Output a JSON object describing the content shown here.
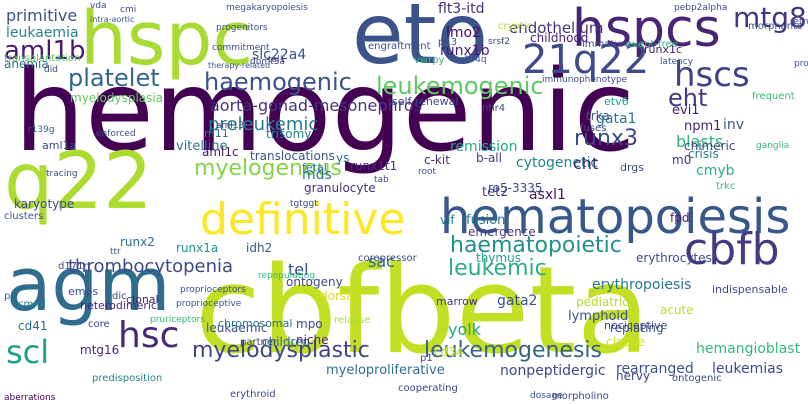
{
  "words": [
    {
      "text": "hemogenic",
      "color": "#440154"
    },
    {
      "text": "cbfbeta",
      "color": "#c2df23"
    },
    {
      "text": "eto",
      "color": "#3b528b"
    },
    {
      "text": "hspc",
      "color": "#a8db34"
    },
    {
      "text": "q22",
      "color": "#addc30"
    },
    {
      "text": "agm",
      "color": "#2f6c8e"
    },
    {
      "text": "hspcs",
      "color": "#482475"
    },
    {
      "text": "21q22",
      "color": "#3e4a89"
    },
    {
      "text": "hematopoiesis",
      "color": "#38588c"
    },
    {
      "text": "cbfb",
      "color": "#443983"
    },
    {
      "text": "definitive",
      "color": "#fde725"
    },
    {
      "text": "hscs",
      "color": "#424086"
    },
    {
      "text": "mtg8",
      "color": "#463480"
    },
    {
      "text": "aml1b",
      "color": "#481b6d"
    },
    {
      "text": "platelet",
      "color": "#31688e"
    },
    {
      "text": "haemogenic",
      "color": "#3b528b"
    },
    {
      "text": "leukemogenic",
      "color": "#5ec962"
    },
    {
      "text": "myelogenous",
      "color": "#84d44b"
    },
    {
      "text": "haematopoietic",
      "color": "#21918c"
    },
    {
      "text": "leukemic",
      "color": "#2ab07f"
    },
    {
      "text": "thrombocytopenia",
      "color": "#3e4989"
    },
    {
      "text": "hsc",
      "color": "#482878"
    },
    {
      "text": "scl",
      "color": "#1fa088"
    },
    {
      "text": "myelodysplastic",
      "color": "#404588"
    },
    {
      "text": "leukemogenesis",
      "color": "#33638d"
    },
    {
      "text": "eht",
      "color": "#443a83"
    },
    {
      "text": "runx3",
      "color": "#3e4989"
    },
    {
      "text": "cytogenetic",
      "color": "#25838e"
    },
    {
      "text": "preleukemic",
      "color": "#287c8e"
    },
    {
      "text": "aorta-gonad-mesonephros",
      "color": "#453581"
    },
    {
      "text": "primitive",
      "color": "#3b528b"
    },
    {
      "text": "leukaemia",
      "color": "#26828e"
    },
    {
      "text": "hematological",
      "color": "#2c728e"
    },
    {
      "text": "myeloid",
      "color": "#2e6e8e"
    },
    {
      "text": "haematopoiesis",
      "color": "#2d708e"
    },
    {
      "text": "flt3-itd",
      "color": "#472d7b"
    },
    {
      "text": "endothelium",
      "color": "#46337f"
    },
    {
      "text": "runx1b",
      "color": "#481f70"
    },
    {
      "text": "lmo2",
      "color": "#470e61"
    },
    {
      "text": "slc22a4",
      "color": "#3a538b"
    },
    {
      "text": "trisomy",
      "color": "#26818e"
    },
    {
      "text": "vitelline",
      "color": "#2a778e"
    },
    {
      "text": "remission",
      "color": "#22a884"
    },
    {
      "text": "blasts",
      "color": "#31b57b"
    },
    {
      "text": "inv",
      "color": "#3a548c"
    },
    {
      "text": "mds",
      "color": "#2d718e"
    },
    {
      "text": "runx1a",
      "color": "#1f958b"
    },
    {
      "text": "tel",
      "color": "#3c4f8a"
    },
    {
      "text": "sac",
      "color": "#306a8e"
    },
    {
      "text": "yolk",
      "color": "#22a785"
    },
    {
      "text": "tet2",
      "color": "#433d84"
    },
    {
      "text": "cht",
      "color": "#482677"
    },
    {
      "text": "asxl1",
      "color": "#471063"
    },
    {
      "text": "gata2",
      "color": "#3b518b"
    },
    {
      "text": "gata1",
      "color": "#2a778e"
    },
    {
      "text": "cmyb",
      "color": "#2ab07f"
    },
    {
      "text": "npm1",
      "color": "#482374"
    },
    {
      "text": "evi1",
      "color": "#481f70"
    },
    {
      "text": "multilineage",
      "color": "#24878e"
    },
    {
      "text": "erythropoiesis",
      "color": "#2a768e"
    },
    {
      "text": "nociceptors",
      "color": "#b5de2b"
    },
    {
      "text": "hemangioblast",
      "color": "#35b779"
    },
    {
      "text": "leukemias",
      "color": "#3e4989"
    },
    {
      "text": "nonpeptidergic",
      "color": "#3f4788"
    },
    {
      "text": "rearranged",
      "color": "#3b528b"
    },
    {
      "text": "myeloproliferative",
      "color": "#2e6f8e"
    },
    {
      "text": "granulocyte",
      "color": "#46327e"
    },
    {
      "text": "idh2",
      "color": "#39568c"
    },
    {
      "text": "lymphoblastic",
      "color": "#26828e"
    },
    {
      "text": "ontogeny",
      "color": "#3e4989"
    },
    {
      "text": "breakpoints",
      "color": "#453781"
    },
    {
      "text": "children",
      "color": "#31688e"
    },
    {
      "text": "leukaemic",
      "color": "#3a538b"
    },
    {
      "text": "mtg16",
      "color": "#482576"
    },
    {
      "text": "cd41",
      "color": "#31688e"
    },
    {
      "text": "fusion",
      "color": "#2c738e"
    },
    {
      "text": "emergence",
      "color": "#443a83"
    },
    {
      "text": "ro5-3335",
      "color": "#3f4788"
    },
    {
      "text": "c-kit",
      "color": "#472a7a"
    },
    {
      "text": "b-all",
      "color": "#453882"
    },
    {
      "text": "aml1c",
      "color": "#481467"
    },
    {
      "text": "aml12",
      "color": "#31688e"
    },
    {
      "text": "karyotype",
      "color": "#3e4989"
    },
    {
      "text": "runx2",
      "color": "#2e6f8e"
    },
    {
      "text": "trka",
      "color": "#3a548c"
    },
    {
      "text": "etv6",
      "color": "#1f9f88"
    },
    {
      "text": "mrd",
      "color": "#482576"
    },
    {
      "text": "chimeric",
      "color": "#404588"
    },
    {
      "text": "crisis",
      "color": "#287c8e"
    },
    {
      "text": "m0",
      "color": "#443983"
    },
    {
      "text": "fpd",
      "color": "#482173"
    },
    {
      "text": "megakaryocytic",
      "color": "#33638d"
    },
    {
      "text": "vif",
      "color": "#26818e"
    },
    {
      "text": "anemia",
      "color": "#2c728e"
    },
    {
      "text": "myelopoiesis",
      "color": "#1f988b"
    },
    {
      "text": "myelodysplasia",
      "color": "#5ec962"
    },
    {
      "text": "hematopoietic",
      "color": "#24868e"
    },
    {
      "text": "translocations",
      "color": "#3b528b"
    },
    {
      "text": "runx1t1",
      "color": "#472c7a"
    },
    {
      "text": "runx1c",
      "color": "#481c6e"
    },
    {
      "text": "self-renewal",
      "color": "#404588"
    },
    {
      "text": "nhr4",
      "color": "#3e4989"
    },
    {
      "text": "lineages",
      "color": "#2c728e"
    },
    {
      "text": "drgs",
      "color": "#404588"
    },
    {
      "text": "fetal",
      "color": "#2d708e"
    },
    {
      "text": "ys",
      "color": "#2e6e8e"
    },
    {
      "text": "nervy",
      "color": "#404588"
    },
    {
      "text": "thymus",
      "color": "#1f9e89"
    },
    {
      "text": "cd34",
      "color": "#b8de29"
    },
    {
      "text": "dorsal",
      "color": "#d8e219"
    },
    {
      "text": "mpo",
      "color": "#3e4989"
    },
    {
      "text": "niche",
      "color": "#482878"
    },
    {
      "text": "drg",
      "color": "#3e4989"
    },
    {
      "text": "pediatric",
      "color": "#addc30"
    },
    {
      "text": "lymphoid",
      "color": "#3b528b"
    },
    {
      "text": "replating",
      "color": "#3b528b"
    },
    {
      "text": "cloche",
      "color": "#d8e219"
    },
    {
      "text": "midgestation",
      "color": "#addc30"
    },
    {
      "text": "acute",
      "color": "#b5de2b"
    },
    {
      "text": "marrow",
      "color": "#46337f"
    },
    {
      "text": "nociceptive",
      "color": "#3f4788"
    },
    {
      "text": "erythrocytes",
      "color": "#3e4a89"
    },
    {
      "text": "myeloblastic",
      "color": "#481467"
    },
    {
      "text": "fli1",
      "color": "#3b528b"
    },
    {
      "text": "indispensable",
      "color": "#3e4989"
    },
    {
      "text": "ceops",
      "color": "#fde725"
    },
    {
      "text": "chromosomal",
      "color": "#2c728e"
    },
    {
      "text": "heterodimeric",
      "color": "#472a7a"
    },
    {
      "text": "d171n",
      "color": "#404588"
    },
    {
      "text": "emps",
      "color": "#3b528b"
    },
    {
      "text": "clonal",
      "color": "#482475"
    },
    {
      "text": "core",
      "color": "#3e4989"
    },
    {
      "text": "thymocytes",
      "color": "#84d44b"
    },
    {
      "text": "nras",
      "color": "#2d708e"
    },
    {
      "text": "cmml",
      "color": "#26818e"
    },
    {
      "text": "p2",
      "color": "#31688e"
    },
    {
      "text": "dic",
      "color": "#3e4989"
    },
    {
      "text": "predisposition",
      "color": "#26828e"
    },
    {
      "text": "myelomonocytic",
      "color": "#31688e"
    },
    {
      "text": "aberrations",
      "color": "#440154"
    },
    {
      "text": "erythroid",
      "color": "#3e4989"
    },
    {
      "text": "partner",
      "color": "#404588"
    },
    {
      "text": "relapse",
      "color": "#addc30"
    },
    {
      "text": "corepressor",
      "color": "#3e4989"
    },
    {
      "text": "cooperating",
      "color": "#404588"
    },
    {
      "text": "p1",
      "color": "#3e4989"
    },
    {
      "text": "dosage",
      "color": "#3b528b"
    },
    {
      "text": "erythromyeloid",
      "color": "#3b528b"
    },
    {
      "text": "morpholino",
      "color": "#3e4989"
    },
    {
      "text": "ontogenic",
      "color": "#3e4989"
    },
    {
      "text": "nhr2",
      "color": "#3e4989"
    },
    {
      "text": "megakaryopoiesis",
      "color": "#3b528b"
    },
    {
      "text": "dnmt3a",
      "color": "#3e4989"
    },
    {
      "text": "repopulating",
      "color": "#35b779"
    },
    {
      "text": "tgtggt",
      "color": "#3e4989"
    },
    {
      "text": "proprioceptive",
      "color": "#3b528b"
    },
    {
      "text": "proprioceptors",
      "color": "#3b528b"
    },
    {
      "text": "pruriceptors",
      "color": "#35b779"
    },
    {
      "text": "m11",
      "color": "#2c728e"
    },
    {
      "text": "aml1a",
      "color": "#3e4989"
    },
    {
      "text": "enforced",
      "color": "#3b528b"
    },
    {
      "text": "r139g",
      "color": "#31688e"
    },
    {
      "text": "tracing",
      "color": "#3e4989"
    },
    {
      "text": "clusters",
      "color": "#3b528b"
    },
    {
      "text": "aml13",
      "color": "#3e4989"
    },
    {
      "text": "ttr",
      "color": "#3b528b"
    },
    {
      "text": "tab",
      "color": "#3e4989"
    },
    {
      "text": "root",
      "color": "#3b528b"
    },
    {
      "text": "ganglia",
      "color": "#35b779"
    },
    {
      "text": "morphants",
      "color": "#3b528b"
    },
    {
      "text": "frequent",
      "color": "#35b779"
    },
    {
      "text": "immunophenotype",
      "color": "#3e4989"
    },
    {
      "text": "latency",
      "color": "#3b528b"
    },
    {
      "text": "immature",
      "color": "#3e4989"
    },
    {
      "text": "event-free",
      "color": "#35b779"
    },
    {
      "text": "childhood",
      "color": "#482475"
    },
    {
      "text": "engraftment",
      "color": "#3b528b"
    },
    {
      "text": "commitment",
      "color": "#3e4989"
    },
    {
      "text": "therapy-related",
      "color": "#3b528b"
    },
    {
      "text": "tal1",
      "color": "#3e4989"
    },
    {
      "text": "vwrpy",
      "color": "#35b779"
    },
    {
      "text": "p13",
      "color": "#3b528b"
    },
    {
      "text": "srsf2",
      "color": "#3e4989"
    },
    {
      "text": "cryptic",
      "color": "#b5de2b"
    },
    {
      "text": "r174q",
      "color": "#3b528b"
    },
    {
      "text": "retroviral",
      "color": "#3e4989"
    },
    {
      "text": "propensity",
      "color": "#3b528b"
    },
    {
      "text": "pebp2alpha",
      "color": "#3e4989"
    },
    {
      "text": "vda",
      "color": "#3b528b"
    },
    {
      "text": "cmi",
      "color": "#3e4989"
    },
    {
      "text": "progenitors",
      "color": "#3b528b"
    },
    {
      "text": "transplantation",
      "color": "#5ec962"
    },
    {
      "text": "did",
      "color": "#3e4989"
    },
    {
      "text": "intra-aortic",
      "color": "#3b528b"
    },
    {
      "text": "fuses",
      "color": "#3e4989"
    },
    {
      "text": "trkc",
      "color": "#35b779"
    }
  ]
}
